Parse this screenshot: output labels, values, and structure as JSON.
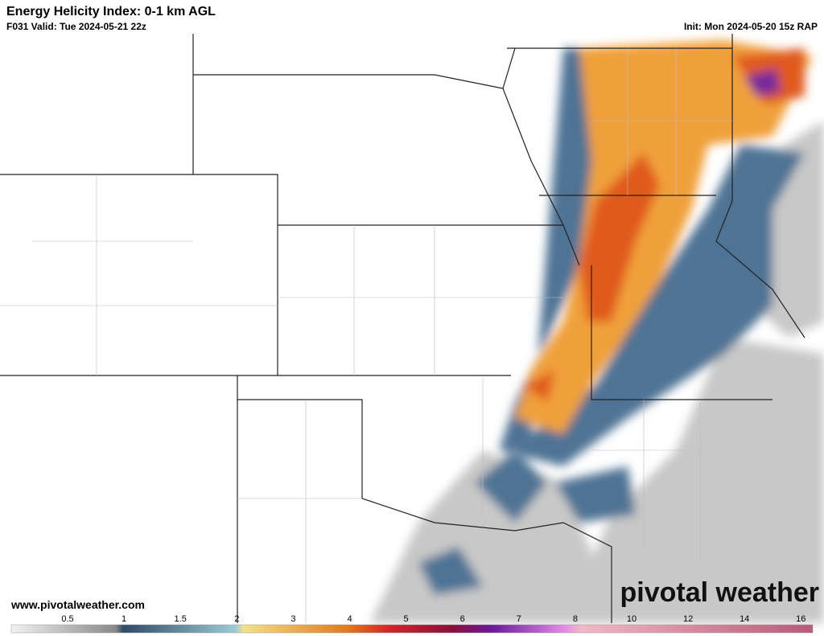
{
  "header": {
    "title": "Energy Helicity Index: 0-1 km AGL",
    "valid": "F031 Valid: Tue 2024-05-21 22z",
    "init": "Init: Mon 2024-05-20 15z RAP"
  },
  "watermark": {
    "website": "www.pivotalweather.com",
    "logo": "pivotal weather"
  },
  "colorbar": {
    "labels": [
      "0.5",
      "1",
      "1.5",
      "2",
      "3",
      "4",
      "5",
      "6",
      "7",
      "8",
      "10",
      "12",
      "14",
      "16"
    ]
  }
}
